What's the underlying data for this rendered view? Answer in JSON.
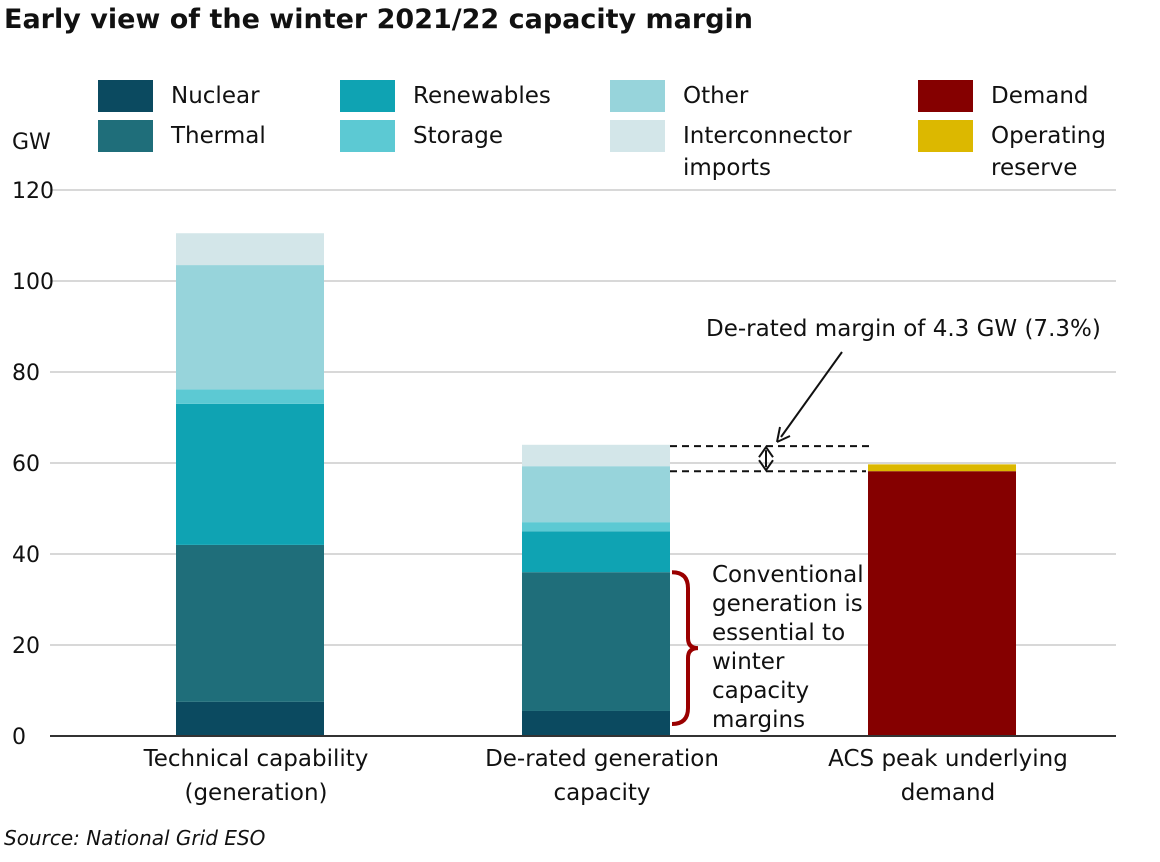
{
  "title": "Early view of the winter 2021/22 capacity margin",
  "source": "Source: National Grid ESO",
  "colors": {
    "Nuclear": "#0b4a60",
    "Thermal": "#1f6e7a",
    "Renewables": "#0fa3b3",
    "Storage": "#5cc9d3",
    "Other": "#97d4db",
    "Interconnector imports": "#d3e6e9",
    "Demand": "#850000",
    "Operating reserve": "#dcb800",
    "grid": "#cccccc",
    "brace": "#9a0000"
  },
  "legend": [
    {
      "key": "Nuclear",
      "label": "Nuclear"
    },
    {
      "key": "Thermal",
      "label": "Thermal"
    },
    {
      "key": "Renewables",
      "label": "Renewables"
    },
    {
      "key": "Storage",
      "label": "Storage"
    },
    {
      "key": "Other",
      "label": "Other"
    },
    {
      "key": "Interconnector imports",
      "label": "Interconnector\nimports"
    },
    {
      "key": "Demand",
      "label": "Demand"
    },
    {
      "key": "Operating reserve",
      "label": "Operating\nreserve"
    }
  ],
  "chart_data": {
    "type": "bar",
    "stacked": true,
    "ylabel": "GW",
    "ylim": [
      0,
      120
    ],
    "yticks": [
      0,
      20,
      40,
      60,
      80,
      100,
      120
    ],
    "grid": true,
    "legend_position": "top",
    "categories": [
      "Technical capability\n(generation)",
      "De-rated generation\ncapacity",
      "ACS peak underlying\ndemand"
    ],
    "series": [
      {
        "name": "Nuclear",
        "values": [
          7.5,
          5.5,
          0
        ]
      },
      {
        "name": "Thermal",
        "values": [
          34.5,
          30.5,
          0
        ]
      },
      {
        "name": "Renewables",
        "values": [
          31,
          9,
          0
        ]
      },
      {
        "name": "Storage",
        "values": [
          3.2,
          2,
          0
        ]
      },
      {
        "name": "Other",
        "values": [
          27.3,
          12.3,
          0
        ]
      },
      {
        "name": "Interconnector imports",
        "values": [
          7,
          4.7,
          0
        ]
      },
      {
        "name": "Demand",
        "values": [
          0,
          0,
          58.2
        ]
      },
      {
        "name": "Operating reserve",
        "values": [
          0,
          0,
          1.5
        ]
      }
    ],
    "annotations": [
      {
        "text": "De-rated margin of 4.3 GW (7.3%)",
        "from": 58.2,
        "to": 63.7
      },
      {
        "text": "Conventional\ngeneration is\nessential to\nwinter\ncapacity\nmargins",
        "from": 0,
        "to": 36
      }
    ]
  }
}
